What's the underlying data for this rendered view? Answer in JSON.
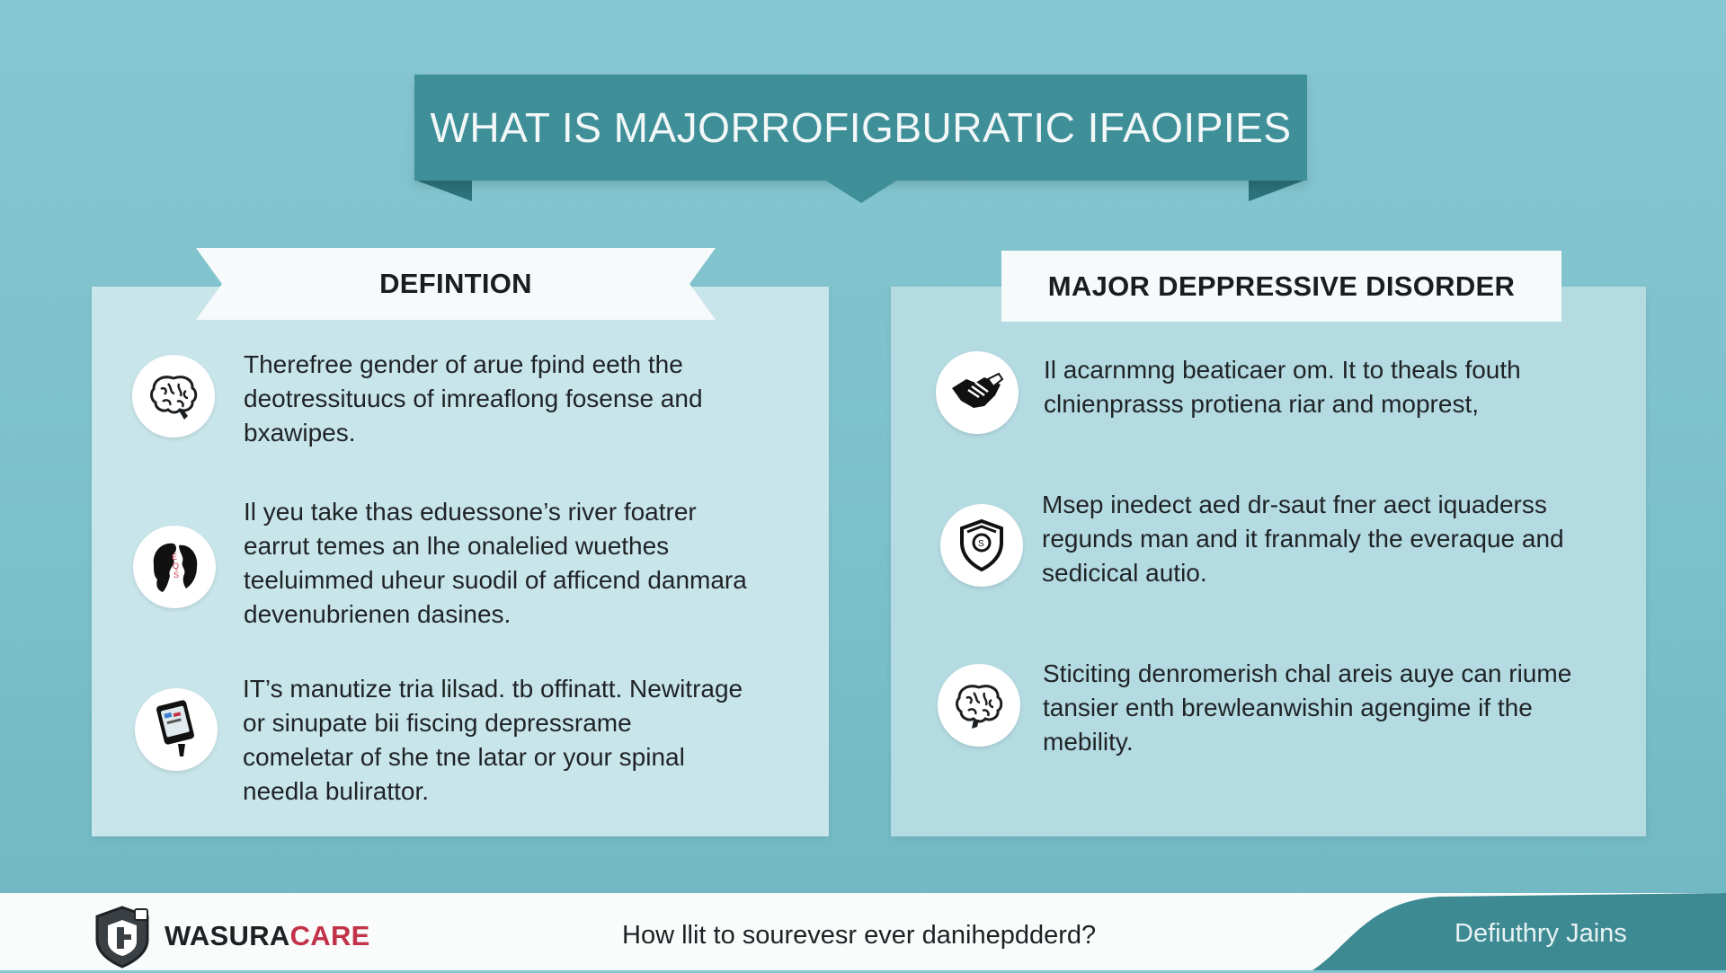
{
  "header": {
    "title": "WHAT IS MAJORROFIGBURATIC IFAOIPIES"
  },
  "left_panel": {
    "heading": "DEFINTION",
    "items": [
      {
        "icon": "brain-icon",
        "lines": [
          "Therefree gender of arue fpind eeth the",
          "deotressituucs of imreaflong fosense and",
          "bxawipes."
        ]
      },
      {
        "icon": "head-profile-icon",
        "lines": [
          "Il yeu take thas eduessone’s river foatrer",
          "earrut temes an lhe onalelied wuethes",
          "teeluimmed uheur suodil of afficend danmara",
          "devenubrienen dasines."
        ]
      },
      {
        "icon": "tablet-icon",
        "lines": [
          "IT’s manutize tria lilsad. tb offinatt. Newitrage",
          "or sinupate bii fiscing depressrame",
          "comeletar of she tne latar or your spinal",
          "needla bulirattor."
        ]
      }
    ]
  },
  "right_panel": {
    "heading": "MAJOR DEPPRESSIVE DISORDER",
    "items": [
      {
        "icon": "handshake-icon",
        "lines": [
          "Il acarnmng beaticaer om. It to theals fouth",
          "clnienprasss protiena riar and moprest,"
        ]
      },
      {
        "icon": "shield-icon",
        "lines": [
          "Msep inedect aed dr-saut fner aect iquaderss",
          "regunds man and it franmaly the everaque and",
          "sedicical autio."
        ]
      },
      {
        "icon": "brain-icon",
        "lines": [
          "Sticiting denromerish chal areis auye can riume",
          "tansier enth brewleanwishin agengime if the",
          "mebility."
        ]
      }
    ]
  },
  "footer": {
    "brand_part1": "WASURA",
    "brand_part2": "CARE",
    "question": "How llit to sourevesr ever danihepdderd?",
    "right_text": "Defiuthry Jains",
    "logo_icon": "shield-logo-icon"
  },
  "colors": {
    "background": "#7cc0cb",
    "ribbon": "#3f8f99",
    "brand_accent": "#c23248",
    "footer_wave": "#3d8a93"
  }
}
